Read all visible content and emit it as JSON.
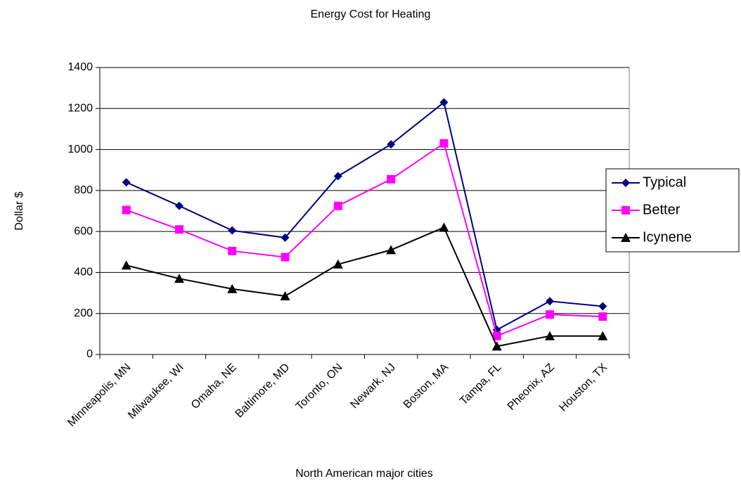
{
  "chart_data": {
    "type": "line",
    "title": "Energy Cost for Heating",
    "x_label": "North American major cities",
    "y_label": "Dollar $",
    "categories": [
      "Minneapolis, MN",
      "Milwaukee, WI",
      "Omaha, NE",
      "Baltimore, MD",
      "Toronto, ON",
      "Newark, NJ",
      "Boston, MA",
      "Tampa, FL",
      "Pheonix, AZ",
      "Houston, TX"
    ],
    "series": [
      {
        "name": "Typical",
        "color": "#000080",
        "marker": "diamond",
        "values": [
          840,
          725,
          605,
          570,
          870,
          1025,
          1230,
          120,
          260,
          235
        ]
      },
      {
        "name": "Better",
        "color": "#ff00ff",
        "marker": "square",
        "values": [
          705,
          610,
          505,
          475,
          725,
          855,
          1030,
          90,
          195,
          185
        ]
      },
      {
        "name": "Icynene",
        "color": "#000000",
        "marker": "triangle",
        "values": [
          435,
          370,
          320,
          285,
          440,
          510,
          620,
          40,
          90,
          90
        ]
      }
    ],
    "ylim": [
      0,
      1400
    ],
    "yticks": [
      0,
      200,
      400,
      600,
      800,
      1000,
      1200,
      1400
    ],
    "grid": true,
    "legend": "right"
  }
}
